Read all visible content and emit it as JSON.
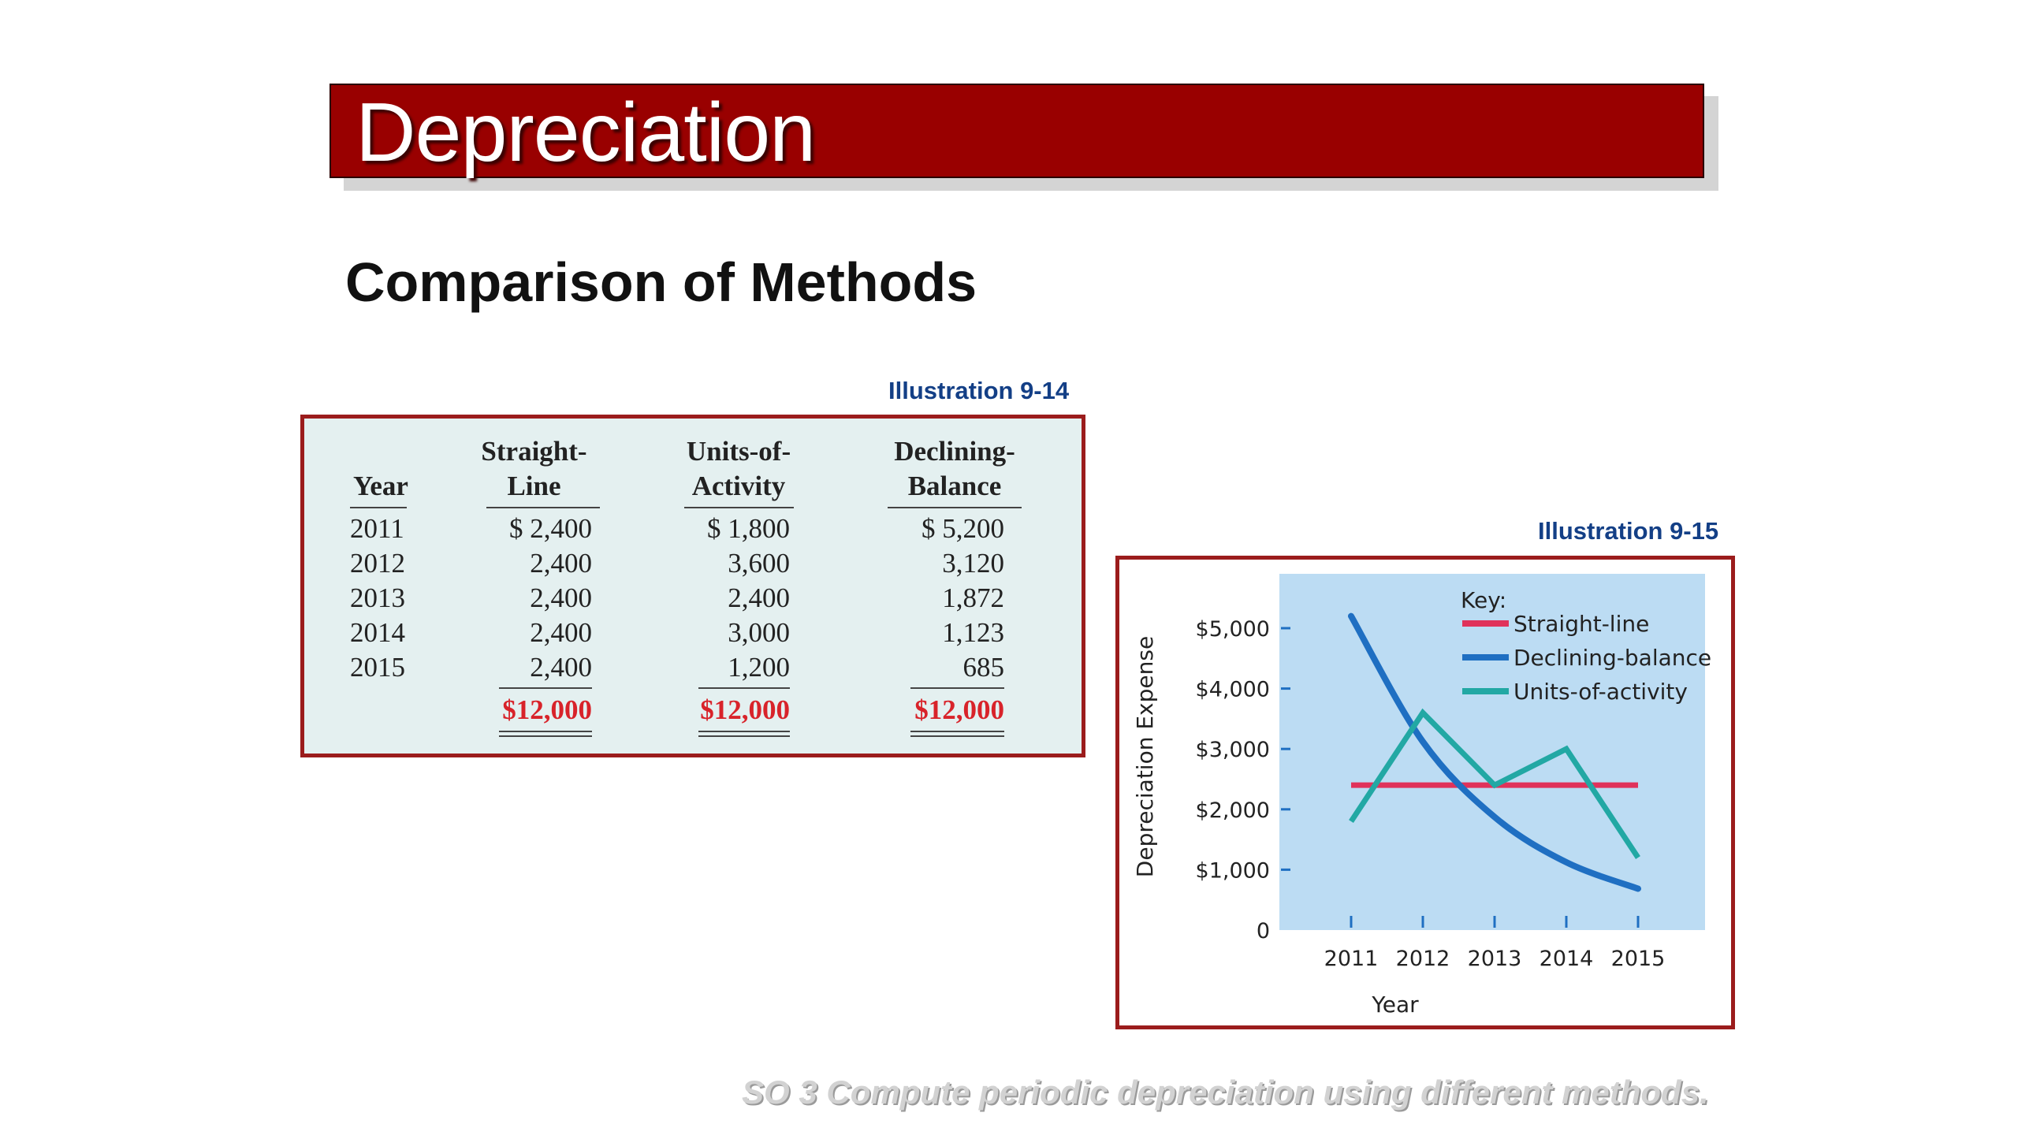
{
  "slide": {
    "title": "Depreciation",
    "subtitle": "Comparison of Methods",
    "footer": "SO 3  Compute periodic depreciation using different methods."
  },
  "illustration_14": {
    "label": "Illustration 9-14",
    "headers": {
      "year": "Year",
      "straight_line": [
        "Straight-",
        "Line"
      ],
      "units_of_activity": [
        "Units-of-",
        "Activity"
      ],
      "declining_balance": [
        "Declining-",
        "Balance"
      ]
    },
    "rows": [
      {
        "year": "2011",
        "sl": "$  2,400",
        "ua": "$  1,800",
        "db": "$  5,200"
      },
      {
        "year": "2012",
        "sl": "2,400",
        "ua": "3,600",
        "db": "3,120"
      },
      {
        "year": "2013",
        "sl": "2,400",
        "ua": "2,400",
        "db": "1,872"
      },
      {
        "year": "2014",
        "sl": "2,400",
        "ua": "3,000",
        "db": "1,123"
      },
      {
        "year": "2015",
        "sl": "2,400",
        "ua": "1,200",
        "db": "685"
      }
    ],
    "totals": {
      "sl": "$12,000",
      "ua": "$12,000",
      "db": "$12,000"
    },
    "total_color": "#d8232a"
  },
  "chart_data": {
    "label": "Illustration 9-15",
    "type": "line",
    "x": [
      2011,
      2012,
      2013,
      2014,
      2015
    ],
    "x_tick_labels": [
      "2011",
      "2012",
      "2013",
      "2014",
      "2015"
    ],
    "xlabel": "Year",
    "ylabel": "Depreciation Expense",
    "ylim": [
      0,
      5000
    ],
    "y_tick_labels": [
      "0",
      "$1,000",
      "$2,000",
      "$3,000",
      "$4,000",
      "$5,000"
    ],
    "y_ticks": [
      0,
      1000,
      2000,
      3000,
      4000,
      5000
    ],
    "legend_title": "Key:",
    "legend_position": "top-right",
    "plot_background": "#bcdcf3",
    "series": [
      {
        "name": "Straight-line",
        "color": "#e0325a",
        "values": [
          2400,
          2400,
          2400,
          2400,
          2400
        ]
      },
      {
        "name": "Declining-balance",
        "color": "#1f6fc2",
        "values": [
          5200,
          3120,
          1872,
          1123,
          685
        ]
      },
      {
        "name": "Units-of-activity",
        "color": "#22a8a4",
        "values": [
          1800,
          3600,
          2400,
          3000,
          1200
        ]
      }
    ]
  }
}
